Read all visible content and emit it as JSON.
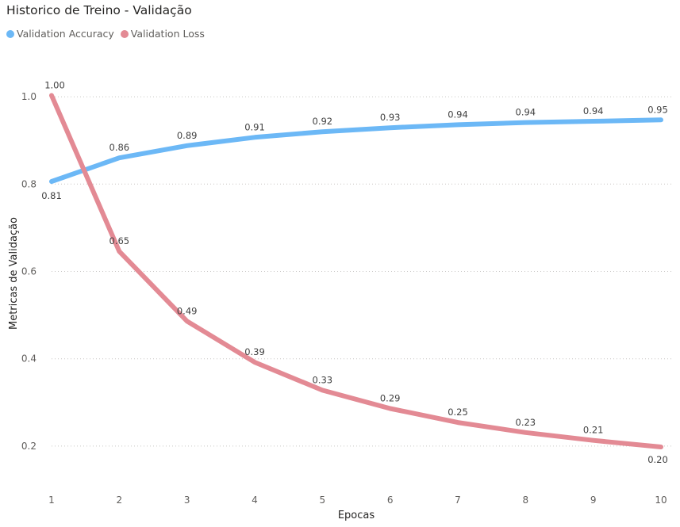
{
  "title": "Historico de Treino - Validação",
  "legend": [
    {
      "name": "Validation Accuracy",
      "color": "#6CB8F6"
    },
    {
      "name": "Validation Loss",
      "color": "#E38A94"
    }
  ],
  "chart_data": {
    "type": "line",
    "title": "Historico de Treino - Validação",
    "xlabel": "Epocas",
    "ylabel": "Metricas de Validação",
    "x": [
      1,
      2,
      3,
      4,
      5,
      6,
      7,
      8,
      9,
      10
    ],
    "x_tick_labels": [
      "1",
      "2",
      "3",
      "4",
      "5",
      "6",
      "7",
      "8",
      "9",
      "10"
    ],
    "y_tick_labels": [
      "0.2",
      "0.4",
      "0.6",
      "0.8",
      "1.0"
    ],
    "y_ticks": [
      0.2,
      0.4,
      0.6,
      0.8,
      1.0
    ],
    "ylim": [
      0.1,
      1.1
    ],
    "grid": "horizontal-dotted",
    "legend_position": "top-left",
    "series": [
      {
        "name": "Validation Accuracy",
        "color": "#6CB8F6",
        "values": [
          0.806,
          0.86,
          0.888,
          0.907,
          0.92,
          0.929,
          0.936,
          0.941,
          0.944,
          0.947
        ],
        "labels": [
          "0.81",
          "0.86",
          "0.89",
          "0.91",
          "0.92",
          "0.93",
          "0.94",
          "0.94",
          "0.94",
          "0.95"
        ]
      },
      {
        "name": "Validation Loss",
        "color": "#E38A94",
        "values": [
          1.003,
          0.646,
          0.486,
          0.392,
          0.328,
          0.286,
          0.254,
          0.231,
          0.213,
          0.198
        ],
        "labels": [
          "1.00",
          "0.65",
          "0.49",
          "0.39",
          "0.33",
          "0.29",
          "0.25",
          "0.23",
          "0.21",
          "0.20"
        ]
      }
    ]
  }
}
